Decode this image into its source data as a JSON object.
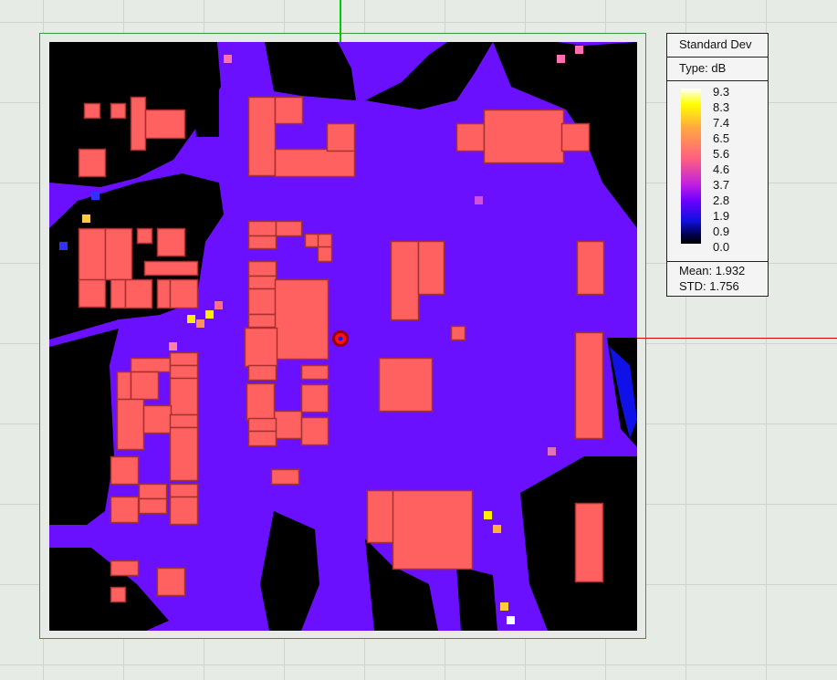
{
  "legend": {
    "title": "Standard Dev",
    "type_label": "Type: dB",
    "ticks": [
      "9.3",
      "8.3",
      "7.4",
      "6.5",
      "5.6",
      "4.6",
      "3.7",
      "2.8",
      "1.9",
      "0.9",
      "0.0"
    ],
    "mean_label": "Mean: 1.932",
    "std_label": "STD: 1.756"
  },
  "colors": {
    "coverage_base": "#6a10ff",
    "no_coverage": "#000000",
    "building_fill": "#ff6060",
    "building_edge": "#a83030",
    "transmitter": "#ff1010",
    "crosshair_vertical": "#00cc00",
    "crosshair_horizontal": "#dd0000"
  },
  "icons": {
    "transmitter": "transmitter-marker-icon"
  }
}
